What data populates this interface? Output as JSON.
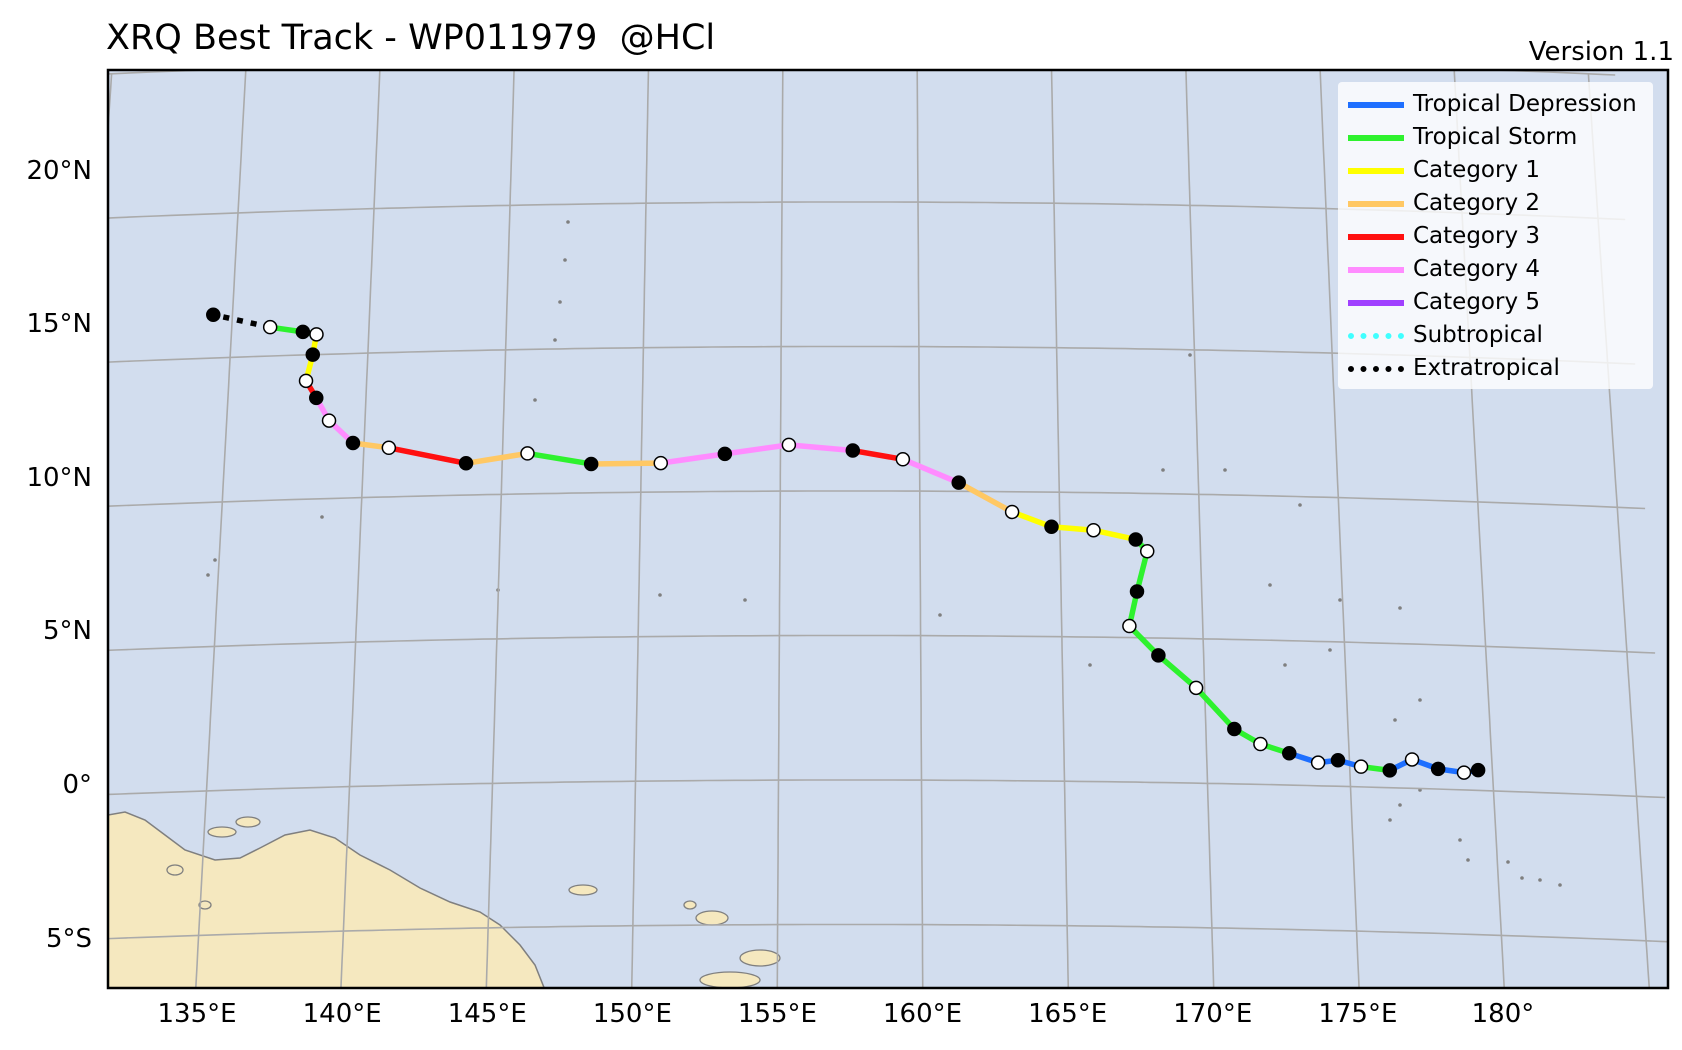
{
  "header": {
    "title": "XRQ Best Track - WP011979  @HCl",
    "version": "Version 1.1"
  },
  "colors": {
    "ocean": "#d2ddee",
    "land": "#f5e8bf",
    "coast": "#7f7f7f",
    "grid": "#aaaaaa",
    "frame": "#000000"
  },
  "map": {
    "lon_labels": [
      "135°E",
      "140°E",
      "145°E",
      "150°E",
      "155°E",
      "160°E",
      "165°E",
      "170°E",
      "175°E",
      "180°"
    ],
    "lat_labels": [
      "20°N",
      "15°N",
      "10°N",
      "5°N",
      "0°",
      "5°S"
    ],
    "lon_range": [
      132.5,
      181.5
    ],
    "lat_range": [
      -6,
      23.5
    ]
  },
  "legend": [
    {
      "label": "Tropical Depression",
      "color": "#1e6fff",
      "style": "solid"
    },
    {
      "label": "Tropical Storm",
      "color": "#2ef22e",
      "style": "solid"
    },
    {
      "label": "Category 1",
      "color": "#ffff00",
      "style": "solid"
    },
    {
      "label": "Category 2",
      "color": "#ffc864",
      "style": "solid"
    },
    {
      "label": "Category 3",
      "color": "#ff1010",
      "style": "solid"
    },
    {
      "label": "Category 4",
      "color": "#ff8cff",
      "style": "solid"
    },
    {
      "label": "Category 5",
      "color": "#a040ff",
      "style": "solid"
    },
    {
      "label": "Subtropical",
      "color": "#40ffff",
      "style": "dotted"
    },
    {
      "label": "Extratropical",
      "color": "#000000",
      "style": "dotted"
    }
  ],
  "track": {
    "points": [
      {
        "lon": 179.5,
        "lat": 0.7,
        "cat": "TD",
        "marker": "black"
      },
      {
        "lon": 179.0,
        "lat": 0.6,
        "cat": "TD",
        "marker": "white"
      },
      {
        "lon": 178.1,
        "lat": 0.7,
        "cat": "TD",
        "marker": "black"
      },
      {
        "lon": 177.2,
        "lat": 1.0,
        "cat": "TD",
        "marker": "white"
      },
      {
        "lon": 176.4,
        "lat": 0.6,
        "cat": "TS",
        "marker": "black"
      },
      {
        "lon": 175.4,
        "lat": 0.7,
        "cat": "TD",
        "marker": "white"
      },
      {
        "lon": 174.6,
        "lat": 0.9,
        "cat": "TD",
        "marker": "black"
      },
      {
        "lon": 173.9,
        "lat": 0.8,
        "cat": "TD",
        "marker": "white"
      },
      {
        "lon": 172.9,
        "lat": 1.1,
        "cat": "TS",
        "marker": "black"
      },
      {
        "lon": 171.9,
        "lat": 1.4,
        "cat": "TS",
        "marker": "white"
      },
      {
        "lon": 171.0,
        "lat": 1.9,
        "cat": "TS",
        "marker": "black"
      },
      {
        "lon": 169.7,
        "lat": 3.3,
        "cat": "TS",
        "marker": "white"
      },
      {
        "lon": 168.4,
        "lat": 4.4,
        "cat": "TS",
        "marker": "black"
      },
      {
        "lon": 167.4,
        "lat": 5.4,
        "cat": "TS",
        "marker": "white"
      },
      {
        "lon": 167.7,
        "lat": 6.6,
        "cat": "TS",
        "marker": "black"
      },
      {
        "lon": 168.1,
        "lat": 8.0,
        "cat": "TS",
        "marker": "white"
      },
      {
        "lon": 167.7,
        "lat": 8.4,
        "cat": "C1",
        "marker": "black"
      },
      {
        "lon": 166.2,
        "lat": 8.7,
        "cat": "C1",
        "marker": "white"
      },
      {
        "lon": 164.7,
        "lat": 8.8,
        "cat": "C1",
        "marker": "black"
      },
      {
        "lon": 163.3,
        "lat": 9.3,
        "cat": "C2",
        "marker": "white"
      },
      {
        "lon": 161.4,
        "lat": 10.3,
        "cat": "C4",
        "marker": "black"
      },
      {
        "lon": 159.4,
        "lat": 11.1,
        "cat": "C3",
        "marker": "white"
      },
      {
        "lon": 157.6,
        "lat": 11.4,
        "cat": "C4",
        "marker": "black"
      },
      {
        "lon": 155.3,
        "lat": 11.6,
        "cat": "C4",
        "marker": "white"
      },
      {
        "lon": 153.0,
        "lat": 11.3,
        "cat": "C4",
        "marker": "black"
      },
      {
        "lon": 150.7,
        "lat": 11.0,
        "cat": "C2",
        "marker": "white"
      },
      {
        "lon": 148.2,
        "lat": 11.0,
        "cat": "TS",
        "marker": "black"
      },
      {
        "lon": 145.9,
        "lat": 11.4,
        "cat": "C2",
        "marker": "white"
      },
      {
        "lon": 143.7,
        "lat": 11.1,
        "cat": "C3",
        "marker": "black"
      },
      {
        "lon": 140.9,
        "lat": 11.7,
        "cat": "C2",
        "marker": "white"
      },
      {
        "lon": 139.6,
        "lat": 11.9,
        "cat": "C4",
        "marker": "black"
      },
      {
        "lon": 138.7,
        "lat": 12.7,
        "cat": "C4",
        "marker": "white"
      },
      {
        "lon": 138.2,
        "lat": 13.5,
        "cat": "C3",
        "marker": "black"
      },
      {
        "lon": 137.8,
        "lat": 14.1,
        "cat": "C1",
        "marker": "white"
      },
      {
        "lon": 138.0,
        "lat": 15.0,
        "cat": "C1",
        "marker": "black"
      },
      {
        "lon": 138.1,
        "lat": 15.7,
        "cat": "TS",
        "marker": "white"
      },
      {
        "lon": 137.6,
        "lat": 15.8,
        "cat": "TS",
        "marker": "black"
      },
      {
        "lon": 136.4,
        "lat": 16.0,
        "cat": "EX",
        "marker": "white"
      },
      {
        "lon": 134.3,
        "lat": 16.5,
        "cat": null,
        "marker": "black"
      }
    ]
  }
}
